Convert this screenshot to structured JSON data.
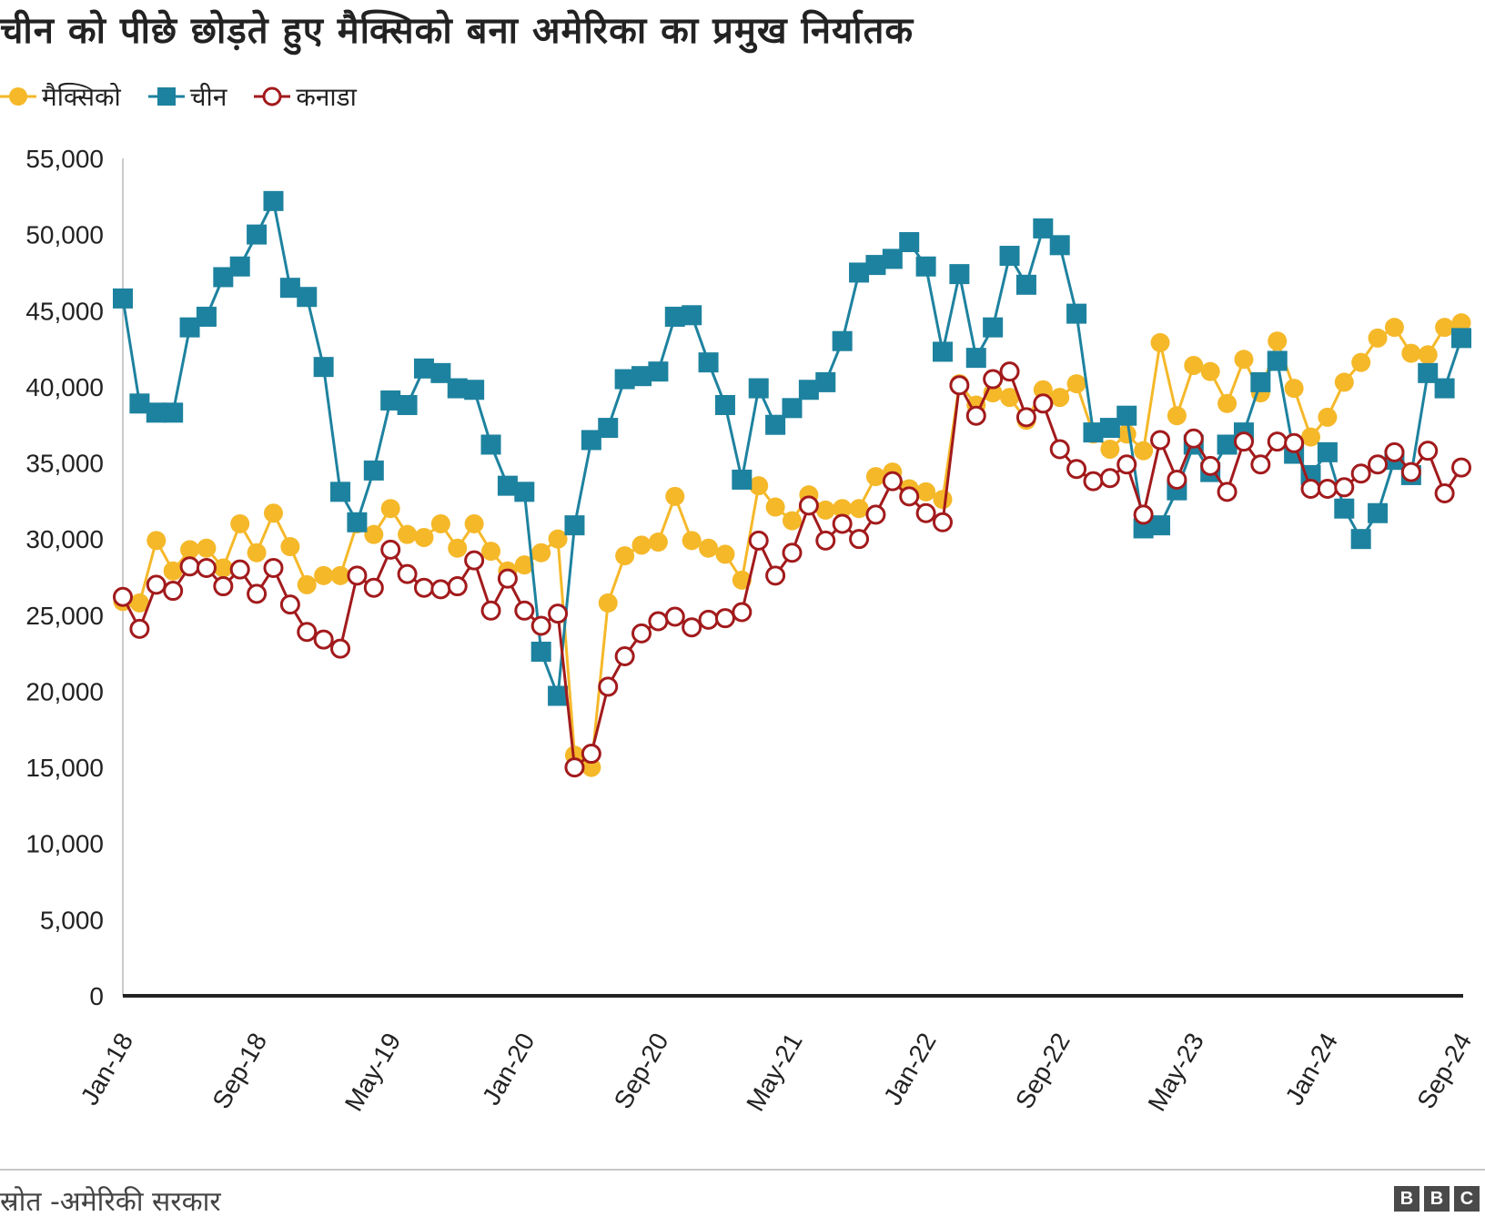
{
  "chart_data": {
    "type": "line",
    "title": "चीन को पीछे छोड़ते हुए मैक्सिको बना अमेरिका का प्रमुख निर्यातक",
    "source": "स्रोत -अमेरिकी सरकार",
    "legend_position": "top-left",
    "grid": false,
    "ylim": [
      0,
      55000
    ],
    "yticks": [
      "0",
      "5,000",
      "10,000",
      "15,000",
      "20,000",
      "25,000",
      "30,000",
      "35,000",
      "40,000",
      "45,000",
      "50,000",
      "55,000"
    ],
    "ytick_values": [
      0,
      5000,
      10000,
      15000,
      20000,
      25000,
      30000,
      35000,
      40000,
      45000,
      50000,
      55000
    ],
    "x_start": "Jan-18",
    "x_end": "Sep-24",
    "xtick_labels": [
      "Jan-18",
      "Sep-18",
      "May-19",
      "Jan-20",
      "Sep-20",
      "May-21",
      "Jan-22",
      "Sep-22",
      "May-23",
      "Jan-24",
      "Sep-24"
    ],
    "series": [
      {
        "name": "मैक्सिको",
        "color": "#f5b829",
        "marker": "circle-filled",
        "values": [
          25900,
          25800,
          29900,
          27900,
          29300,
          29400,
          28100,
          31000,
          29100,
          31700,
          29500,
          27000,
          27600,
          27600,
          31000,
          30300,
          32000,
          30300,
          30100,
          31000,
          29400,
          31000,
          29200,
          27900,
          28300,
          29100,
          30000,
          15800,
          15000,
          25800,
          28900,
          29600,
          29800,
          32800,
          29900,
          29400,
          29000,
          27300,
          33500,
          32100,
          31200,
          32900,
          31900,
          32000,
          32000,
          34100,
          34400,
          33300,
          33100,
          32600,
          40200,
          38800,
          39600,
          39300,
          37800,
          39800,
          39300,
          40200,
          36900,
          35900,
          36900,
          35800,
          42900,
          38100,
          41400,
          41000,
          38900,
          41800,
          39600,
          43000,
          39900,
          36700,
          38000,
          40300,
          41600,
          43200,
          43900,
          42200,
          42100,
          43900,
          44200
        ]
      },
      {
        "name": "चीन",
        "color": "#1d829f",
        "marker": "square-filled",
        "values": [
          45800,
          38900,
          38300,
          38300,
          43900,
          44600,
          47200,
          47900,
          50000,
          52200,
          46500,
          45900,
          41300,
          33100,
          31100,
          34500,
          39100,
          38800,
          41200,
          40900,
          39900,
          39800,
          36200,
          33500,
          33100,
          22600,
          19700,
          30900,
          36500,
          37300,
          40500,
          40700,
          41000,
          44600,
          44700,
          41600,
          38800,
          33900,
          39900,
          37500,
          38600,
          39800,
          40300,
          43000,
          47500,
          48000,
          48400,
          49500,
          47900,
          42300,
          47400,
          41900,
          43900,
          48600,
          46700,
          50400,
          49300,
          44800,
          37000,
          37300,
          38100,
          30700,
          30900,
          33200,
          36200,
          34400,
          36200,
          37000,
          40300,
          41700,
          35600,
          34200,
          35700,
          32000,
          30000,
          31700,
          35200,
          34200,
          40900,
          39900,
          43200
        ]
      },
      {
        "name": "कनाडा",
        "color": "#a21a1c",
        "marker": "circle-open",
        "values": [
          26200,
          24100,
          27000,
          26600,
          28200,
          28100,
          26900,
          28000,
          26400,
          28100,
          25700,
          23900,
          23400,
          22800,
          27600,
          26800,
          29300,
          27700,
          26800,
          26700,
          26900,
          28600,
          25300,
          27400,
          25300,
          24300,
          25100,
          15000,
          15900,
          20300,
          22300,
          23800,
          24600,
          24900,
          24200,
          24700,
          24800,
          25200,
          29900,
          27600,
          29100,
          32200,
          29900,
          31000,
          30000,
          31600,
          33800,
          32800,
          31700,
          31100,
          40100,
          38100,
          40500,
          41000,
          38000,
          38900,
          35900,
          34600,
          33800,
          34000,
          34900,
          31600,
          36500,
          33900,
          36600,
          34800,
          33100,
          36400,
          34900,
          36400,
          36300,
          33300,
          33300,
          33400,
          34300,
          34900,
          35700,
          34400,
          35800,
          33000,
          34700
        ]
      }
    ]
  }
}
